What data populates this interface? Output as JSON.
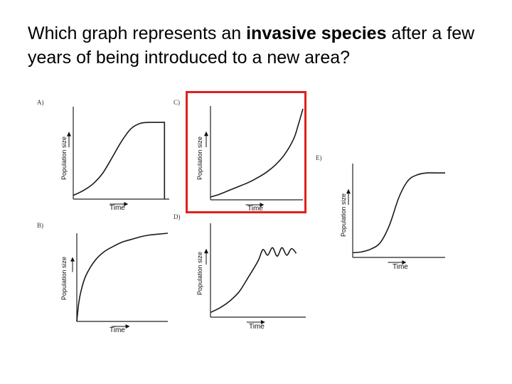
{
  "question": {
    "part1": "Which graph represents an ",
    "bold": "invasive species",
    "part2": " after a few years of being introduced to a new area?"
  },
  "highlight_color": "#e02020",
  "chart_data": [
    {
      "id": "A",
      "type": "line",
      "panel_label": "A)",
      "xlabel": "Time",
      "ylabel": "Population size",
      "shape": "logistic growth then sudden drop to zero",
      "x": [
        0,
        0.1,
        0.2,
        0.3,
        0.4,
        0.5,
        0.6,
        0.7,
        0.8,
        0.9,
        0.95,
        1.0
      ],
      "values": [
        0.04,
        0.09,
        0.16,
        0.27,
        0.44,
        0.62,
        0.76,
        0.82,
        0.83,
        0.83,
        0.0,
        0.0
      ]
    },
    {
      "id": "C",
      "type": "line",
      "panel_label": "C)",
      "xlabel": "Time",
      "ylabel": "Population size",
      "shape": "exponential growth",
      "highlighted": true,
      "x": [
        0,
        0.1,
        0.2,
        0.3,
        0.4,
        0.5,
        0.6,
        0.7,
        0.8,
        0.9,
        0.95,
        1.0
      ],
      "values": [
        0.03,
        0.06,
        0.1,
        0.14,
        0.18,
        0.23,
        0.29,
        0.37,
        0.48,
        0.65,
        0.8,
        0.97
      ]
    },
    {
      "id": "E",
      "type": "line",
      "panel_label": "E)",
      "xlabel": "Time",
      "ylabel": "Population size",
      "shape": "logistic (S-shaped) growth",
      "x": [
        0,
        0.1,
        0.2,
        0.3,
        0.4,
        0.5,
        0.6,
        0.7,
        0.8,
        0.9,
        1.0
      ],
      "values": [
        0.05,
        0.06,
        0.09,
        0.16,
        0.35,
        0.64,
        0.82,
        0.88,
        0.9,
        0.9,
        0.9
      ]
    },
    {
      "id": "B",
      "type": "line",
      "panel_label": "B)",
      "xlabel": "Time",
      "ylabel": "Population size",
      "shape": "rapid rise then leveling off",
      "x": [
        0,
        0.02,
        0.05,
        0.1,
        0.2,
        0.3,
        0.4,
        0.5,
        0.6,
        0.7,
        0.8,
        0.9,
        1.0
      ],
      "values": [
        0.0,
        0.2,
        0.36,
        0.52,
        0.69,
        0.79,
        0.85,
        0.9,
        0.93,
        0.96,
        0.98,
        0.99,
        1.0
      ]
    },
    {
      "id": "D",
      "type": "line",
      "panel_label": "D)",
      "xlabel": "Time",
      "ylabel": "Population size",
      "shape": "growth then oscillation around carrying capacity",
      "x": [
        0,
        0.1,
        0.2,
        0.3,
        0.4,
        0.5,
        0.55,
        0.6,
        0.65,
        0.7,
        0.75,
        0.8,
        0.85,
        0.9
      ],
      "values": [
        0.05,
        0.1,
        0.17,
        0.27,
        0.43,
        0.6,
        0.72,
        0.66,
        0.74,
        0.65,
        0.74,
        0.66,
        0.73,
        0.68
      ]
    }
  ]
}
